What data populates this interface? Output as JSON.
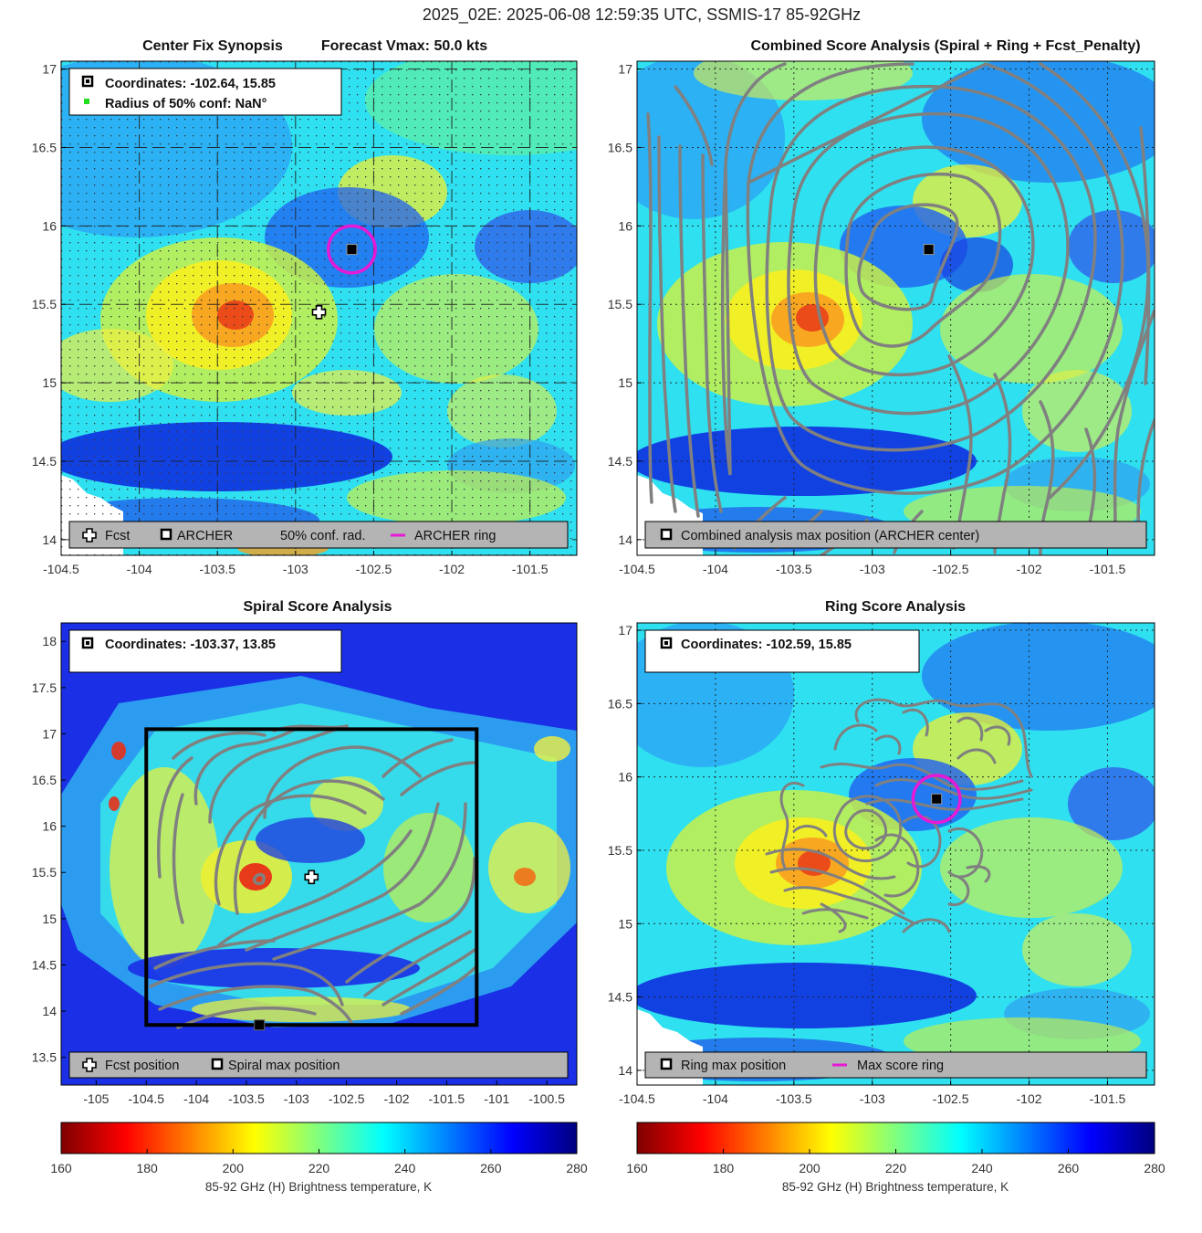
{
  "figure_title": "2025_02E: 2025-06-08 12:59:35 UTC, SSMIS-17 85-92GHz",
  "colors": {
    "archer_ring": "#e619d6",
    "contour": "#808080",
    "legend_bar": "#b4b4b4",
    "box": "#000000"
  },
  "panels": {
    "p1": {
      "title_left": "Center Fix Synopsis",
      "title_right": "Forecast Vmax: 50.0 kts",
      "info_line1": "Coordinates: -102.64, 15.85",
      "info_line2": "Radius of 50% conf: NaN°",
      "legend": {
        "fcst": "Fcst",
        "archer": "ARCHER",
        "conf": "50% conf. rad.",
        "ring": "ARCHER ring"
      },
      "x_ticks": [
        "-104.5",
        "-104",
        "-103.5",
        "-103",
        "-102.5",
        "-102",
        "-101.5"
      ],
      "y_ticks": [
        "17",
        "16.5",
        "16",
        "15.5",
        "15",
        "14.5",
        "14"
      ]
    },
    "p2": {
      "title": "Combined Score Analysis (Spiral + Ring + Fcst_Penalty)",
      "legend": {
        "max": "Combined analysis max position (ARCHER center)"
      },
      "x_ticks": [
        "-104.5",
        "-104",
        "-103.5",
        "-103",
        "-102.5",
        "-102",
        "-101.5"
      ],
      "y_ticks": [
        "17",
        "16.5",
        "16",
        "15.5",
        "15",
        "14.5",
        "14"
      ]
    },
    "p3": {
      "title": "Spiral Score Analysis",
      "info_line1": "Coordinates: -103.37, 13.85",
      "legend": {
        "fcst": "Fcst position",
        "max": "Spiral max position"
      },
      "x_ticks": [
        "-105",
        "-104.5",
        "-104",
        "-103.5",
        "-103",
        "-102.5",
        "-102",
        "-101.5",
        "-101",
        "-100.5"
      ],
      "y_ticks": [
        "18",
        "17.5",
        "17",
        "16.5",
        "16",
        "15.5",
        "15",
        "14.5",
        "14",
        "13.5"
      ]
    },
    "p4": {
      "title": "Ring Score Analysis",
      "info_line1": "Coordinates: -102.59, 15.85",
      "legend": {
        "max": "Ring max position",
        "ring": "Max score ring"
      },
      "x_ticks": [
        "-104.5",
        "-104",
        "-103.5",
        "-103",
        "-102.5",
        "-102",
        "-101.5"
      ],
      "y_ticks": [
        "17",
        "16.5",
        "16",
        "15.5",
        "15",
        "14.5",
        "14"
      ]
    }
  },
  "colorbar": {
    "ticks": [
      "160",
      "180",
      "200",
      "220",
      "240",
      "260",
      "280"
    ],
    "label": "85-92 GHz (H) Brightness temperature, K"
  },
  "chart_data": [
    {
      "type": "heatmap",
      "title": "Center Fix Synopsis",
      "x_range": [
        -104.5,
        -101.2
      ],
      "y_range": [
        13.9,
        17.05
      ],
      "markers": [
        {
          "name": "ARCHER",
          "x": -102.64,
          "y": 15.85
        },
        {
          "name": "Fcst",
          "x": -102.85,
          "y": 15.45
        }
      ],
      "archer_ring_radius_deg": 0.15,
      "value_range": [
        160,
        280
      ],
      "grid": true
    },
    {
      "type": "heatmap",
      "title": "Combined Score Analysis (Spiral + Ring + Fcst_Penalty)",
      "x_range": [
        -104.5,
        -101.2
      ],
      "y_range": [
        13.9,
        17.05
      ],
      "markers": [
        {
          "name": "Combined analysis max position (ARCHER center)",
          "x": -102.64,
          "y": 15.85
        }
      ],
      "grid": true
    },
    {
      "type": "heatmap",
      "title": "Spiral Score Analysis",
      "x_range": [
        -105.35,
        -100.2
      ],
      "y_range": [
        13.2,
        18.2
      ],
      "markers": [
        {
          "name": "Spiral max position",
          "x": -103.37,
          "y": 13.85
        },
        {
          "name": "Fcst position",
          "x": -102.85,
          "y": 15.45
        }
      ],
      "search_box": {
        "x": [
          -104.5,
          -101.2
        ],
        "y": [
          13.85,
          17.05
        ]
      },
      "grid": false
    },
    {
      "type": "heatmap",
      "title": "Ring Score Analysis",
      "x_range": [
        -104.5,
        -101.2
      ],
      "y_range": [
        13.9,
        17.05
      ],
      "markers": [
        {
          "name": "Ring max position",
          "x": -102.59,
          "y": 15.85
        }
      ],
      "max_score_ring_radius_deg": 0.15,
      "grid": true
    }
  ]
}
